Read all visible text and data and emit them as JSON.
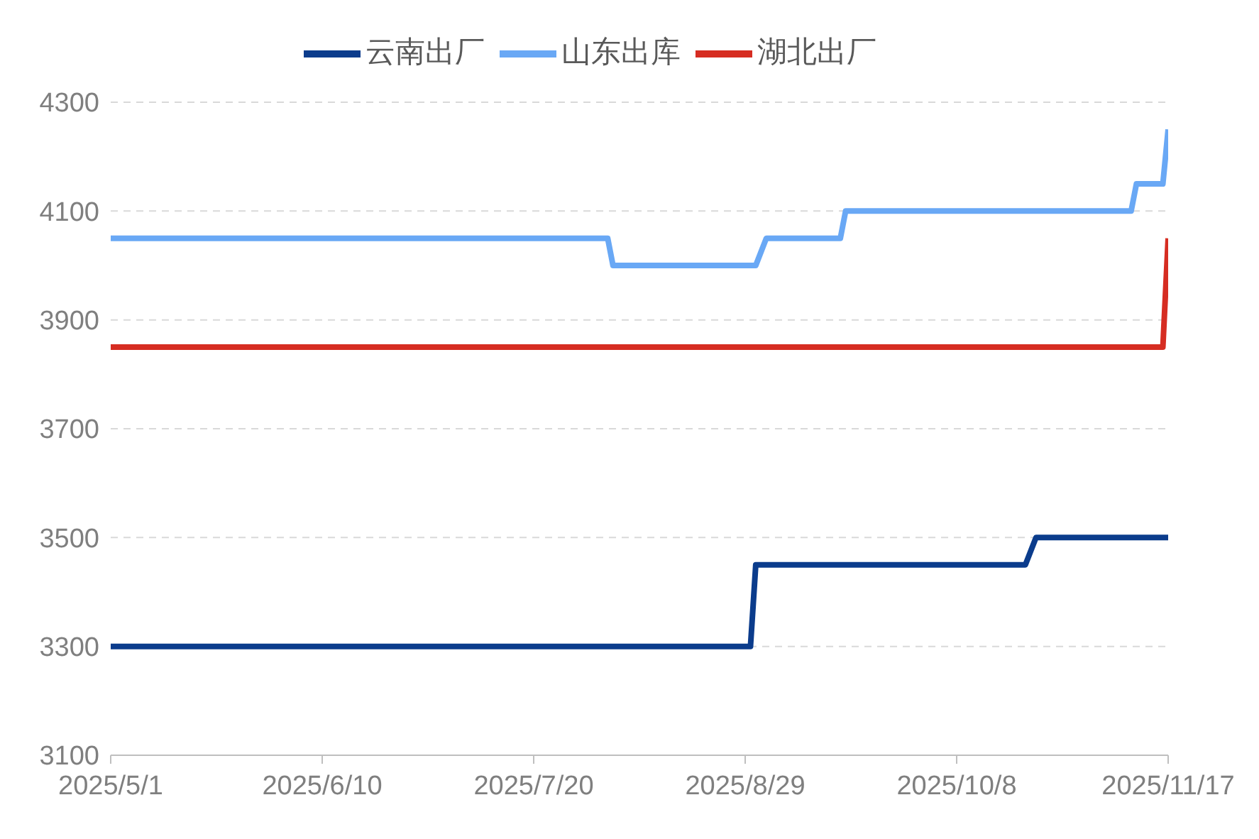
{
  "chart_data": {
    "type": "line",
    "series": [
      {
        "name": "云南出厂",
        "color": "#0b3c8c",
        "x": [
          "2025-05-01",
          "2025-08-30",
          "2025-08-31",
          "2025-10-21",
          "2025-10-23",
          "2025-11-17"
        ],
        "values": [
          3300,
          3300,
          3450,
          3450,
          3500,
          3500
        ]
      },
      {
        "name": "湖北出厂",
        "color": "#d62d22",
        "x": [
          "2025-05-01",
          "2025-11-16",
          "2025-11-17"
        ],
        "values": [
          3850,
          3850,
          4050
        ]
      },
      {
        "name": "山东出库",
        "color": "#69a8f5",
        "x": [
          "2025-05-01",
          "2025-08-03",
          "2025-08-04",
          "2025-08-31",
          "2025-09-02",
          "2025-09-16",
          "2025-09-17",
          "2025-11-10",
          "2025-11-11",
          "2025-11-16",
          "2025-11-17"
        ],
        "values": [
          4050,
          4050,
          4000,
          4000,
          4050,
          4050,
          4100,
          4100,
          4150,
          4150,
          4250
        ]
      }
    ],
    "xlim": [
      "2025-05-01",
      "2025-11-17"
    ],
    "xticks": [
      {
        "value": "2025-05-01",
        "label": "2025/5/1"
      },
      {
        "value": "2025-06-10",
        "label": "2025/6/10"
      },
      {
        "value": "2025-07-20",
        "label": "2025/7/20"
      },
      {
        "value": "2025-08-29",
        "label": "2025/8/29"
      },
      {
        "value": "2025-10-08",
        "label": "2025/10/8"
      },
      {
        "value": "2025-11-17",
        "label": "2025/11/17"
      }
    ],
    "ylim": [
      3100,
      4300
    ],
    "yticks": [
      3100,
      3300,
      3500,
      3700,
      3900,
      4100,
      4300
    ],
    "grid": "y",
    "legend": "top",
    "marker": "none",
    "line_style": "solid"
  }
}
